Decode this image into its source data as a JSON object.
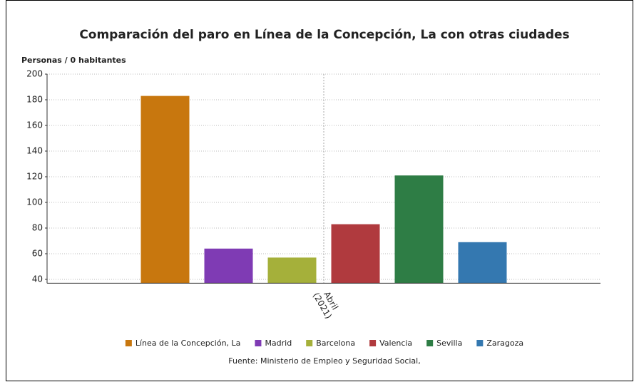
{
  "chart_data": {
    "type": "bar",
    "title": "Comparación del paro en Línea de la Concepción, La con otras ciudades",
    "y_label": "Personas / 0 habitantes",
    "source": "Fuente: Ministerio de Empleo y Seguridad Social,",
    "categories": [
      "Abril (2021)"
    ],
    "series": [
      {
        "name": "Línea de la Concepción, La",
        "color": "#c8770e",
        "values": [
          183
        ]
      },
      {
        "name": "Madrid",
        "color": "#7f3bb4",
        "values": [
          64
        ]
      },
      {
        "name": "Barcelona",
        "color": "#a5b03a",
        "values": [
          57
        ]
      },
      {
        "name": "Valencia",
        "color": "#b03a3e",
        "values": [
          83
        ]
      },
      {
        "name": "Sevilla",
        "color": "#2e7d45",
        "values": [
          121
        ]
      },
      {
        "name": "Zaragoza",
        "color": "#3478b0",
        "values": [
          69
        ]
      }
    ],
    "ylim": [
      37,
      200
    ],
    "yticks": [
      40,
      60,
      80,
      100,
      120,
      140,
      160,
      180,
      200
    ],
    "grid": true,
    "legend": "bottom"
  }
}
